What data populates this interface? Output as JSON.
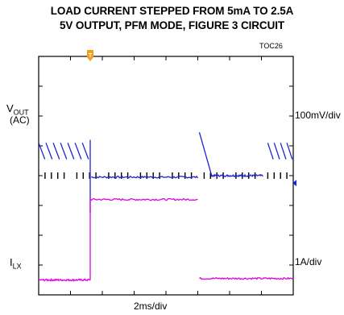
{
  "header": {
    "title_line1": "LOAD CURRENT STEPPED FROM 5mA TO 2.5A",
    "title_line2": "5V OUTPUT, PFM MODE, FIGURE 3 CIRCUIT",
    "figure_id": "TOC26"
  },
  "chart_data": {
    "type": "line",
    "title": "LOAD CURRENT STEPPED FROM 5mA TO 2.5A",
    "subtitle": "5V OUTPUT, PFM MODE, FIGURE 3 CIRCUIT",
    "xlabel": "2ms/div",
    "x_divisions": 8,
    "y_divisions": 8,
    "grid": "scope-tick-marks",
    "trigger_marker": "T",
    "series": [
      {
        "name": "VOUT (AC)",
        "label_main": "V",
        "label_sub": "OUT",
        "label_extra": "(AC)",
        "scale": "100mV/div",
        "color": "#1f23d6",
        "segments": [
          {
            "type": "sawtooth",
            "x_start": 0.0,
            "x_end": 1.6,
            "y_top": 5.1,
            "y_bottom": 4.55,
            "teeth": 7
          },
          {
            "type": "spike",
            "x": 1.62,
            "y_top": 5.2,
            "y_bottom": 2.75
          },
          {
            "type": "flat",
            "x_start": 1.65,
            "x_end": 5.0,
            "y": 3.95
          },
          {
            "type": "ramp",
            "x_start": 5.05,
            "x_end": 5.45,
            "y_top": 5.45,
            "y_bottom": 3.95
          },
          {
            "type": "flat",
            "x_start": 5.45,
            "x_end": 7.05,
            "y": 4.0
          },
          {
            "type": "sawtooth",
            "x_start": 7.2,
            "x_end": 8.0,
            "y_top": 5.1,
            "y_bottom": 4.55,
            "teeth": 4
          }
        ]
      },
      {
        "name": "ILX",
        "label_main": "I",
        "label_sub": "LX",
        "scale": "1A/div",
        "color": "#e100e1",
        "segments": [
          {
            "type": "flat",
            "x_start": 0.0,
            "x_end": 1.62,
            "y": 0.5
          },
          {
            "type": "step",
            "x": 1.62,
            "y_from": 0.5,
            "y_to": 3.25
          },
          {
            "type": "flat",
            "x_start": 1.62,
            "x_end": 5.0,
            "y": 3.2
          },
          {
            "type": "gap",
            "x_start": 5.0,
            "x_end": 5.05
          },
          {
            "type": "flat",
            "x_start": 5.05,
            "x_end": 8.0,
            "y": 0.55
          }
        ]
      }
    ]
  }
}
